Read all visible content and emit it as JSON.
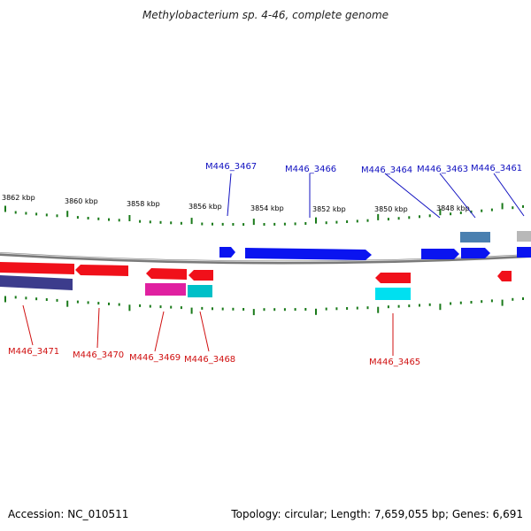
{
  "title": "Methylobacterium sp. 4-46, complete genome",
  "footer": {
    "accession": "Accession: NC_010511",
    "summary": "Topology: circular; Length: 7,659,055 bp; Genes: 6,691"
  },
  "ruler": [
    "3862 kbp",
    "3860 kbp",
    "3858 kbp",
    "3856 kbp",
    "3854 kbp",
    "3852 kbp",
    "3850 kbp",
    "3848 kbp"
  ],
  "colors": {
    "forward": "#0a14f0",
    "reverse": "#f0101a",
    "tick": "#1a7a1a",
    "backbone": "#808080",
    "label_forward": "#1010c0",
    "label_reverse": "#d01010"
  },
  "genes": [
    {
      "id": "M446_3467",
      "strand": "forward",
      "color": "#0a14f0"
    },
    {
      "id": "M446_3466",
      "strand": "forward",
      "color": "#0a14f0"
    },
    {
      "id": "M446_3464",
      "strand": "forward",
      "color": "#0a14f0"
    },
    {
      "id": "M446_3463",
      "strand": "forward",
      "color": "#0a14f0"
    },
    {
      "id": "M446_3461",
      "strand": "forward",
      "color": "#0a14f0"
    },
    {
      "id": "M446_3471",
      "strand": "reverse",
      "color": "#f0101a"
    },
    {
      "id": "M446_3470",
      "strand": "reverse",
      "color": "#f0101a"
    },
    {
      "id": "M446_3469",
      "strand": "reverse",
      "color": "#f0101a"
    },
    {
      "id": "M446_3468",
      "strand": "reverse",
      "color": "#f0101a"
    },
    {
      "id": "M446_3465",
      "strand": "reverse",
      "color": "#f0101a"
    }
  ],
  "extra_tracks": [
    {
      "name": "purple-track",
      "color": "#3c3c8c"
    },
    {
      "name": "magenta-track",
      "color": "#e020a0"
    },
    {
      "name": "cyan-track-1",
      "color": "#00c0c8"
    },
    {
      "name": "cyan-track-2",
      "color": "#00e0f0"
    },
    {
      "name": "steelblue-track",
      "color": "#4a80b0"
    },
    {
      "name": "gray-track",
      "color": "#b8b8b8"
    }
  ]
}
